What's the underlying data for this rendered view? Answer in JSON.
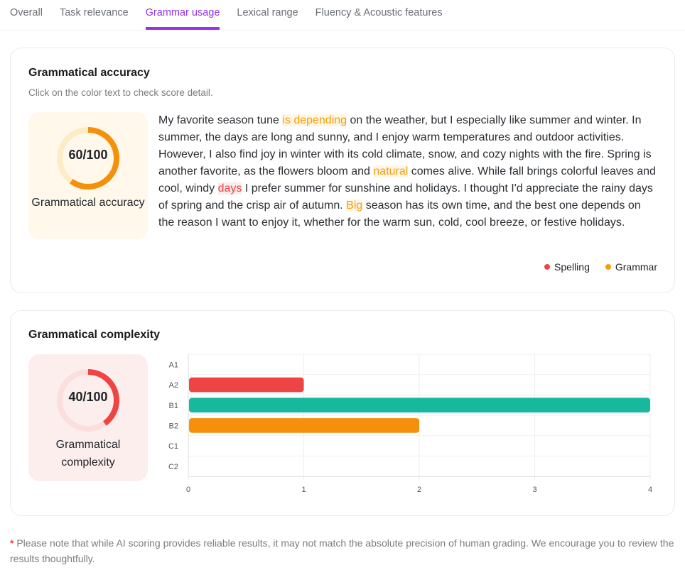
{
  "tabs": [
    "Overall",
    "Task relevance",
    "Grammar usage",
    "Lexical range",
    "Fluency & Acoustic features"
  ],
  "active_tab": "Grammar usage",
  "accuracy": {
    "title": "Grammatical accuracy",
    "subtitle": "Click on the color text to check score detail.",
    "score_text": "60/100",
    "score": 60,
    "label": "Grammatical accuracy",
    "paragraph": [
      {
        "t": "My favorite season tune "
      },
      {
        "t": "is depending",
        "type": "grammar"
      },
      {
        "t": " on the weather, but I especially like summer and winter. In summer, the days are long and sunny, and I enjoy warm temperatures and outdoor activities. However, I also find joy in winter with its cold climate, snow, and cozy nights with the fire. Spring is another favorite, as the flowers bloom and "
      },
      {
        "t": "natural",
        "type": "grammar"
      },
      {
        "t": " comes alive. While fall brings colorful leaves and cool, windy "
      },
      {
        "t": "days",
        "type": "spelling"
      },
      {
        "t": " I prefer summer for sunshine and holidays. I thought I'd appreciate the rainy days of spring and the crisp air of autumn. "
      },
      {
        "t": "Big",
        "type": "grammar"
      },
      {
        "t": " season has its own time, and the best one depends on the reason I want to enjoy it, whether for the warm sun, cold, cool breeze, or festive holidays."
      }
    ],
    "legend": [
      {
        "label": "Spelling",
        "color": "#ef4444"
      },
      {
        "label": "Grammar",
        "color": "#f59e0b"
      }
    ]
  },
  "complexity": {
    "title": "Grammatical complexity",
    "score_text": "40/100",
    "score": 40,
    "label": "Grammatical complexity"
  },
  "chart_data": {
    "type": "bar",
    "orientation": "horizontal",
    "categories": [
      "A1",
      "A2",
      "B1",
      "B2",
      "C1",
      "C2"
    ],
    "values": [
      0,
      1,
      4,
      2,
      0,
      0
    ],
    "colors": [
      "#ef4444",
      "#ef4444",
      "#16b89e",
      "#f5900b",
      "#f5900b",
      "#f5900b"
    ],
    "xlim": [
      0,
      4
    ],
    "xticks": [
      "0",
      "1",
      "2",
      "3",
      "4"
    ],
    "grid": true
  },
  "footer": {
    "star": "*",
    "note": "Please note that while AI scoring provides reliable results, it may not match the absolute precision of human grading. We encourage you to review the results thoughtfully."
  }
}
